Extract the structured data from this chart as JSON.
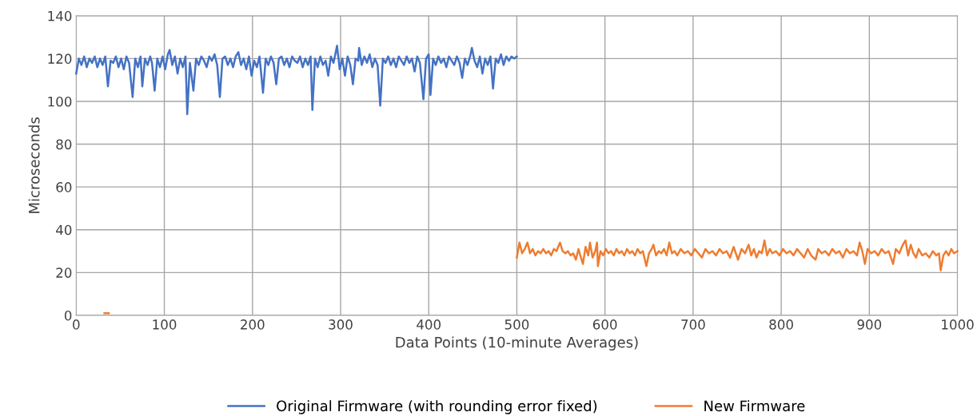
{
  "chart_data": {
    "type": "line",
    "xlabel": "Data Points (10-minute Averages)",
    "ylabel": "Microseconds",
    "xlim": [
      0,
      1000
    ],
    "xticks": [
      0,
      100,
      200,
      300,
      400,
      500,
      600,
      700,
      800,
      900,
      1000
    ],
    "ylim": [
      0,
      140
    ],
    "yticks": [
      0,
      20,
      40,
      60,
      80,
      100,
      120,
      140
    ],
    "grid": true,
    "legend": "bottom",
    "marker": "none",
    "line_style": "solid",
    "series": [
      {
        "name": "Original Firmware (with rounding error fixed)",
        "color": "#4472c4",
        "x": [
          0,
          3,
          6,
          9,
          12,
          15,
          18,
          21,
          24,
          27,
          30,
          33,
          36,
          39,
          42,
          45,
          48,
          51,
          54,
          57,
          60,
          64,
          67,
          70,
          73,
          75,
          78,
          81,
          84,
          86,
          89,
          92,
          95,
          98,
          101,
          104,
          106,
          109,
          112,
          115,
          118,
          121,
          124,
          126,
          129,
          133,
          136,
          139,
          142,
          145,
          148,
          151,
          154,
          157,
          160,
          163,
          166,
          169,
          172,
          175,
          178,
          181,
          184,
          187,
          190,
          193,
          196,
          199,
          202,
          205,
          208,
          212,
          215,
          218,
          221,
          224,
          227,
          230,
          233,
          236,
          239,
          242,
          245,
          248,
          251,
          254,
          257,
          260,
          263,
          266,
          268,
          271,
          274,
          277,
          280,
          283,
          286,
          289,
          292,
          296,
          299,
          302,
          305,
          308,
          311,
          314,
          317,
          320,
          321,
          324,
          327,
          330,
          333,
          336,
          339,
          342,
          345,
          348,
          351,
          354,
          357,
          360,
          363,
          366,
          369,
          372,
          375,
          378,
          381,
          384,
          387,
          390,
          394,
          397,
          400,
          402,
          405,
          408,
          411,
          414,
          417,
          420,
          423,
          426,
          429,
          432,
          435,
          438,
          441,
          444,
          447,
          449,
          452,
          455,
          458,
          461,
          464,
          467,
          470,
          473,
          476,
          479,
          482,
          485,
          488,
          491,
          494,
          497,
          500
        ],
        "values": [
          113,
          120,
          117,
          121,
          116,
          120,
          118,
          121,
          116,
          120,
          117,
          121,
          107,
          119,
          118,
          121,
          116,
          120,
          115,
          121,
          118,
          102,
          120,
          116,
          121,
          107,
          120,
          117,
          121,
          118,
          105,
          120,
          116,
          121,
          115,
          122,
          124,
          117,
          121,
          113,
          120,
          116,
          121,
          94,
          118,
          105,
          120,
          117,
          121,
          119,
          116,
          121,
          119,
          122,
          117,
          102,
          120,
          121,
          117,
          120,
          116,
          121,
          123,
          117,
          120,
          115,
          121,
          112,
          119,
          116,
          121,
          104,
          120,
          117,
          121,
          118,
          108,
          120,
          121,
          117,
          120,
          116,
          121,
          119,
          118,
          121,
          116,
          120,
          117,
          121,
          96,
          120,
          116,
          121,
          117,
          119,
          112,
          121,
          118,
          126,
          115,
          120,
          112,
          121,
          117,
          108,
          120,
          119,
          125,
          117,
          121,
          118,
          122,
          116,
          120,
          117,
          98,
          120,
          118,
          121,
          117,
          120,
          116,
          121,
          119,
          117,
          121,
          118,
          120,
          114,
          121,
          118,
          101,
          120,
          122,
          103,
          120,
          117,
          121,
          118,
          120,
          116,
          121,
          119,
          117,
          121,
          118,
          111,
          120,
          117,
          121,
          125,
          119,
          116,
          121,
          113,
          120,
          117,
          121,
          106,
          120,
          118,
          122,
          117,
          121,
          119,
          121,
          120,
          121
        ]
      },
      {
        "name": "New Firmware",
        "color": "#ed7d31",
        "x": [
          32,
          37,
          38,
          500,
          503,
          506,
          509,
          512,
          515,
          518,
          521,
          524,
          527,
          530,
          533,
          536,
          539,
          542,
          545,
          549,
          552,
          555,
          558,
          561,
          564,
          567,
          570,
          572,
          575,
          578,
          581,
          583,
          586,
          589,
          591,
          592,
          595,
          598,
          601,
          604,
          607,
          610,
          613,
          616,
          619,
          622,
          625,
          628,
          631,
          634,
          637,
          640,
          643,
          647,
          650,
          653,
          655,
          658,
          661,
          664,
          667,
          670,
          673,
          676,
          679,
          682,
          686,
          690,
          694,
          698,
          702,
          706,
          710,
          714,
          718,
          722,
          726,
          730,
          734,
          738,
          742,
          746,
          751,
          755,
          759,
          763,
          766,
          769,
          772,
          775,
          778,
          781,
          784,
          787,
          790,
          794,
          798,
          802,
          806,
          810,
          814,
          818,
          822,
          826,
          830,
          834,
          839,
          842,
          846,
          850,
          854,
          858,
          862,
          866,
          870,
          874,
          878,
          882,
          886,
          889,
          892,
          895,
          898,
          902,
          906,
          910,
          914,
          918,
          922,
          927,
          930,
          934,
          938,
          941,
          944,
          947,
          950,
          953,
          956,
          960,
          964,
          968,
          972,
          976,
          979,
          981,
          984,
          987,
          990,
          993,
          996,
          1000
        ],
        "values": [
          1,
          1,
          null,
          27,
          34,
          29,
          31,
          34,
          29,
          31,
          28,
          30,
          29,
          31,
          29,
          30,
          28,
          31,
          30,
          34,
          30,
          29,
          30,
          28,
          29,
          26,
          31,
          28,
          24,
          32,
          28,
          34,
          27,
          30,
          34,
          23,
          30,
          28,
          31,
          29,
          30,
          28,
          31,
          29,
          30,
          28,
          31,
          29,
          30,
          28,
          31,
          29,
          30,
          23,
          29,
          31,
          33,
          28,
          30,
          29,
          31,
          28,
          34,
          29,
          30,
          28,
          31,
          29,
          30,
          28,
          31,
          29,
          27,
          31,
          29,
          30,
          28,
          31,
          29,
          30,
          27,
          32,
          26,
          31,
          29,
          33,
          28,
          31,
          27,
          30,
          29,
          35,
          28,
          31,
          29,
          30,
          28,
          31,
          29,
          30,
          28,
          31,
          29,
          27,
          31,
          28,
          26,
          31,
          29,
          30,
          28,
          31,
          29,
          30,
          27,
          31,
          29,
          30,
          28,
          34,
          30,
          24,
          31,
          29,
          30,
          28,
          31,
          29,
          30,
          24,
          31,
          29,
          33,
          35,
          28,
          33,
          29,
          27,
          31,
          28,
          29,
          27,
          30,
          28,
          29,
          21,
          28,
          30,
          28,
          31,
          29,
          30
        ]
      }
    ]
  }
}
